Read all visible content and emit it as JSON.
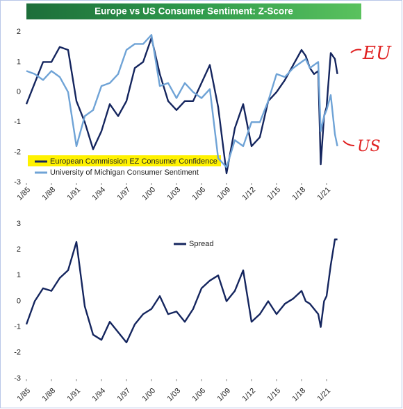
{
  "chart_data": [
    {
      "type": "line",
      "title": "Europe vs US Consumer Sentiment: Z-Score",
      "x": [
        1985,
        1986,
        1987,
        1988,
        1989,
        1990,
        1991,
        1992,
        1993,
        1994,
        1995,
        1996,
        1997,
        1998,
        1999,
        2000,
        2001,
        2002,
        2003,
        2004,
        2005,
        2006,
        2007,
        2008,
        2009,
        2010,
        2011,
        2012,
        2013,
        2014,
        2015,
        2016,
        2017,
        2018,
        2018.5,
        2019,
        2019.5,
        2020,
        2020.3,
        2020.7,
        2021,
        2021.5,
        2022,
        2022.3
      ],
      "series": [
        {
          "name": "European Commission EZ Consumer Confidence",
          "color": "#14255e",
          "values": [
            -0.4,
            0.3,
            1.0,
            1.0,
            1.5,
            1.4,
            -0.3,
            -1.0,
            -1.9,
            -1.3,
            -0.4,
            -0.8,
            -0.3,
            0.8,
            1.0,
            1.8,
            0.6,
            -0.3,
            -0.6,
            -0.3,
            -0.3,
            0.3,
            0.9,
            -0.5,
            -2.7,
            -1.2,
            -0.4,
            -1.8,
            -1.5,
            -0.3,
            0.0,
            0.4,
            0.9,
            1.4,
            1.2,
            0.8,
            0.6,
            0.7,
            -2.4,
            -0.8,
            -0.5,
            1.3,
            1.1,
            0.6
          ]
        },
        {
          "name": "University of Michigan Consumer Sentiment",
          "color": "#6fa3d6",
          "values": [
            0.7,
            0.6,
            0.4,
            0.7,
            0.5,
            0.0,
            -1.8,
            -0.8,
            -0.6,
            0.2,
            0.3,
            0.6,
            1.4,
            1.6,
            1.6,
            1.9,
            0.2,
            0.3,
            -0.2,
            0.3,
            0.0,
            -0.2,
            0.1,
            -2.2,
            -2.5,
            -1.6,
            -1.8,
            -1.0,
            -1.0,
            -0.3,
            0.6,
            0.5,
            0.8,
            1.0,
            1.1,
            0.8,
            0.9,
            1.0,
            -1.3,
            -0.8,
            -0.6,
            -0.1,
            -1.4,
            -1.8
          ]
        }
      ],
      "xlim": [
        1985,
        2025
      ],
      "xticks": [
        {
          "value": 1985,
          "label": "1/85"
        },
        {
          "value": 1988,
          "label": "1/88"
        },
        {
          "value": 1991,
          "label": "1/91"
        },
        {
          "value": 1994,
          "label": "1/94"
        },
        {
          "value": 1997,
          "label": "1/97"
        },
        {
          "value": 2000,
          "label": "1/00"
        },
        {
          "value": 2003,
          "label": "1/03"
        },
        {
          "value": 2006,
          "label": "1/06"
        },
        {
          "value": 2009,
          "label": "1/09"
        },
        {
          "value": 2012,
          "label": "1/12"
        },
        {
          "value": 2015,
          "label": "1/15"
        },
        {
          "value": 2018,
          "label": "1/18"
        },
        {
          "value": 2021,
          "label": "1/21"
        }
      ],
      "ylim": [
        -3,
        2
      ],
      "yticks": [
        -3,
        -2,
        -1,
        0,
        1,
        2
      ],
      "annotations": [
        "EU",
        "US"
      ]
    },
    {
      "type": "line",
      "x": [
        1985,
        1986,
        1987,
        1988,
        1989,
        1990,
        1991,
        1992,
        1993,
        1994,
        1995,
        1996,
        1997,
        1998,
        1999,
        2000,
        2001,
        2002,
        2003,
        2004,
        2005,
        2006,
        2007,
        2008,
        2009,
        2010,
        2011,
        2012,
        2013,
        2014,
        2015,
        2016,
        2017,
        2018,
        2018.5,
        2019,
        2019.5,
        2020,
        2020.3,
        2020.7,
        2021,
        2021.5,
        2022,
        2022.3
      ],
      "series": [
        {
          "name": "Spread",
          "color": "#14255e",
          "values": [
            -0.9,
            0.0,
            0.5,
            0.4,
            0.9,
            1.2,
            2.3,
            -0.2,
            -1.3,
            -1.5,
            -0.8,
            -1.2,
            -1.6,
            -0.9,
            -0.5,
            -0.3,
            0.2,
            -0.5,
            -0.4,
            -0.8,
            -0.3,
            0.5,
            0.8,
            1.0,
            0.0,
            0.4,
            1.2,
            -0.8,
            -0.5,
            0.0,
            -0.5,
            -0.1,
            0.1,
            0.4,
            0.0,
            -0.1,
            -0.3,
            -0.5,
            -1.0,
            0.0,
            0.2,
            1.4,
            2.4,
            2.4
          ]
        }
      ],
      "xlim": [
        1985,
        2025
      ],
      "xticks": [
        {
          "value": 1985,
          "label": "1/85"
        },
        {
          "value": 1988,
          "label": "1/88"
        },
        {
          "value": 1991,
          "label": "1/91"
        },
        {
          "value": 1994,
          "label": "1/94"
        },
        {
          "value": 1997,
          "label": "1/97"
        },
        {
          "value": 2000,
          "label": "1/00"
        },
        {
          "value": 2003,
          "label": "1/03"
        },
        {
          "value": 2006,
          "label": "1/06"
        },
        {
          "value": 2009,
          "label": "1/09"
        },
        {
          "value": 2012,
          "label": "1/12"
        },
        {
          "value": 2015,
          "label": "1/15"
        },
        {
          "value": 2018,
          "label": "1/18"
        },
        {
          "value": 2021,
          "label": "1/21"
        }
      ],
      "ylim": [
        -3,
        3
      ],
      "yticks": [
        -3,
        -2,
        -1,
        0,
        1,
        2,
        3
      ]
    }
  ]
}
